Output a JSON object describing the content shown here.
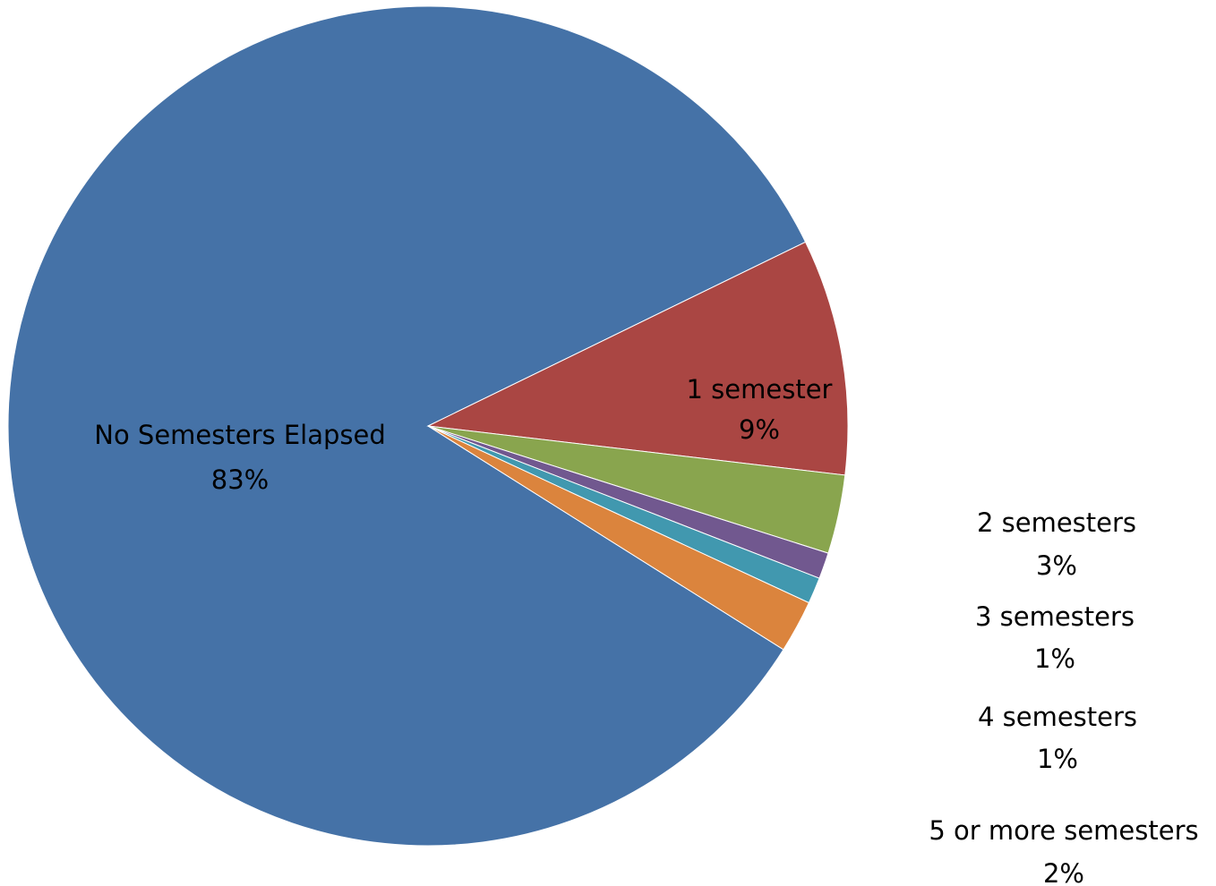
{
  "chart_data": {
    "type": "pie",
    "title": "",
    "labels_shown": [
      "category name",
      "percentage"
    ],
    "legend": "none",
    "slices": [
      {
        "label": "No Semesters Elapsed",
        "value": 83,
        "value_label": "83%",
        "color": "#4572A7"
      },
      {
        "label": "1 semester",
        "value": 9,
        "value_label": "9%",
        "color": "#AA4643"
      },
      {
        "label": "2 semesters",
        "value": 3,
        "value_label": "3%",
        "color": "#89A54E"
      },
      {
        "label": "3 semesters",
        "value": 1,
        "value_label": "1%",
        "color": "#71588F"
      },
      {
        "label": "4 semesters",
        "value": 1,
        "value_label": "1%",
        "color": "#4198AF"
      },
      {
        "label": "5 or more semesters",
        "value": 2,
        "value_label": "2%",
        "color": "#DB843D"
      }
    ]
  }
}
